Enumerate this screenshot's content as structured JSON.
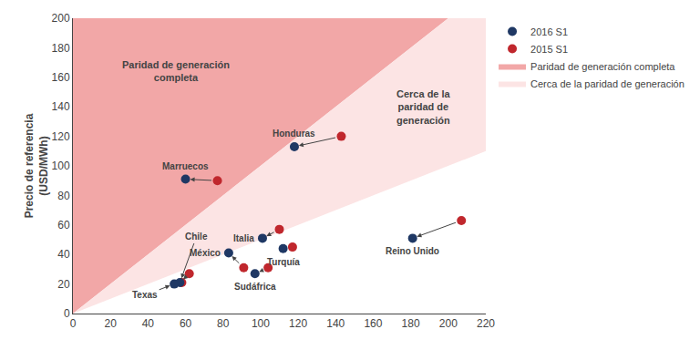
{
  "chart_data": {
    "type": "scatter",
    "ylabel": "Precio de referencia\n(USD/MWh)",
    "xlim": [
      0,
      220
    ],
    "ylim": [
      0,
      200
    ],
    "xticks": [
      0,
      20,
      40,
      60,
      80,
      100,
      120,
      140,
      160,
      180,
      200,
      220
    ],
    "yticks": [
      0,
      20,
      40,
      60,
      80,
      100,
      120,
      140,
      160,
      180,
      200
    ],
    "grid": false,
    "point_labels": [
      "Marruecos",
      "Honduras",
      "Chile",
      "Texas",
      "Italia",
      "Turquía",
      "México",
      "Sudáfrica",
      "Reino Unido"
    ],
    "series": [
      {
        "name": "2016 S1",
        "color": "#1f3864",
        "x": [
          60,
          118,
          57,
          54,
          101,
          112,
          83,
          97,
          181
        ],
        "values": [
          91,
          113,
          21,
          20,
          51,
          44,
          41,
          27,
          51
        ]
      },
      {
        "name": "2015 S1",
        "color": "#c0272d",
        "x": [
          77,
          143,
          62,
          58,
          110,
          117,
          91,
          104,
          207
        ],
        "values": [
          90,
          120,
          27,
          21,
          57,
          45,
          31,
          31,
          63
        ]
      }
    ],
    "zones": [
      {
        "name": "Paridad de generación completa",
        "color": "#f2a7a7",
        "text": "Paridad de generación\ncompleta",
        "min_ratio": 1
      },
      {
        "name": "Cerca de la paridad de generación",
        "color": "#fce4e4",
        "text": "Cerca de la\nparidad de\ngeneración",
        "min_ratio": 0.5,
        "max_ratio": 1
      }
    ]
  }
}
